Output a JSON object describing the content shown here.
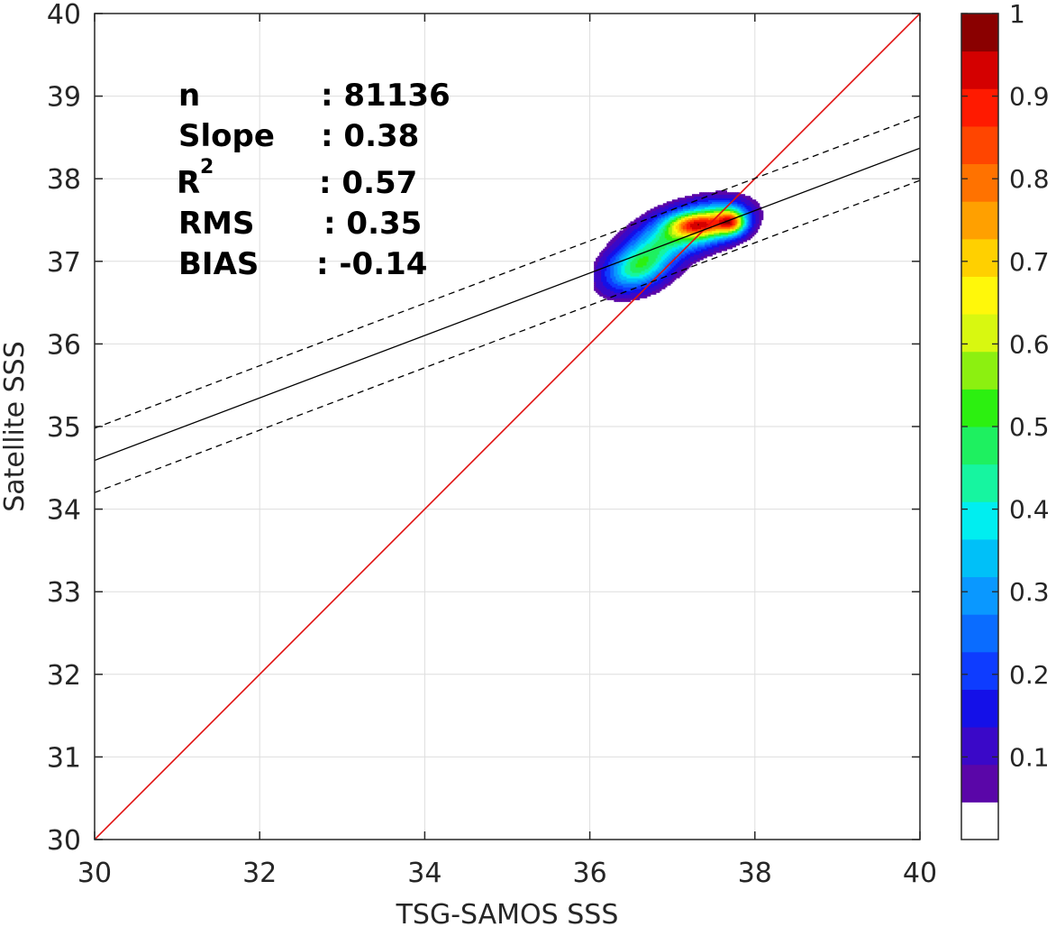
{
  "chart_data": {
    "type": "heatmap",
    "title": "",
    "xlabel": "TSG-SAMOS SSS",
    "ylabel": "Satellite SSS",
    "xlim": [
      30,
      40
    ],
    "ylim": [
      30,
      40
    ],
    "xticks": [
      30,
      32,
      34,
      36,
      38,
      40
    ],
    "yticks": [
      30,
      31,
      32,
      33,
      34,
      35,
      36,
      37,
      38,
      39,
      40
    ],
    "grid": true,
    "stats": [
      {
        "label": "n",
        "sup": "",
        "value": ": 81136"
      },
      {
        "label": "Slope",
        "sup": "",
        "value": ": 0.38"
      },
      {
        "label": "R",
        "sup": "2",
        "value": ": 0.57"
      },
      {
        "label": "RMS",
        "sup": "",
        "value": ": 0.35"
      },
      {
        "label": "BIAS",
        "sup": "",
        "value": ": -0.14"
      }
    ],
    "one_to_one_line": {
      "x": [
        30,
        40
      ],
      "y": [
        30,
        40
      ],
      "color": "#e01010"
    },
    "regression_line": {
      "x": [
        30,
        40
      ],
      "y": [
        34.59,
        38.37
      ],
      "color": "#000000"
    },
    "confidence_lines": [
      {
        "x": [
          30,
          40
        ],
        "y": [
          34.98,
          38.76
        ],
        "style": "dashed"
      },
      {
        "x": [
          30,
          40
        ],
        "y": [
          34.2,
          37.98
        ],
        "style": "dashed"
      }
    ],
    "density_hotspots": [
      {
        "x": 36.6,
        "y": 36.95,
        "level": 0.55
      },
      {
        "x": 37.25,
        "y": 37.45,
        "level": 0.75
      },
      {
        "x": 37.72,
        "y": 37.48,
        "level": 1.0
      }
    ],
    "colorbar": {
      "min": 0,
      "max": 1,
      "ticks": [
        0.1,
        0.2,
        0.3,
        0.4,
        0.5,
        0.6,
        0.7,
        0.8,
        0.9,
        1
      ],
      "tick_labels": [
        "0.1",
        "0.2",
        "0.3",
        "0.4",
        "0.5",
        "0.6",
        "0.7",
        "0.8",
        "0.9",
        "1"
      ],
      "colors": [
        "#ffffff",
        "#5a06a8",
        "#3a08c8",
        "#1410e8",
        "#0e3cff",
        "#0a6cff",
        "#0a98ff",
        "#00c0f8",
        "#00eef0",
        "#16f5a0",
        "#1ef060",
        "#2cf010",
        "#8cf010",
        "#d8f810",
        "#fff80a",
        "#ffd000",
        "#ffa000",
        "#ff7200",
        "#ff4500",
        "#ff1a00",
        "#d40000",
        "#8a0000"
      ]
    }
  }
}
